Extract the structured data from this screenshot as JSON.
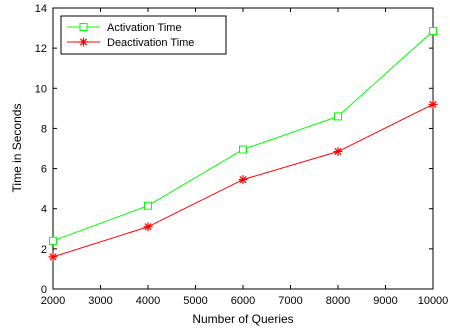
{
  "chart_data": {
    "type": "line",
    "title": "",
    "xlabel": "Number of Queries",
    "ylabel": "Time in Seconds",
    "xlim": [
      2000,
      10000
    ],
    "ylim": [
      0,
      14
    ],
    "xticks": [
      2000,
      3000,
      4000,
      5000,
      6000,
      7000,
      8000,
      9000,
      10000
    ],
    "yticks": [
      0,
      2,
      4,
      6,
      8,
      10,
      12,
      14
    ],
    "grid": false,
    "legend_position": "top-left",
    "series": [
      {
        "name": "Activation Time",
        "color": "#00ff00",
        "marker": "square",
        "x": [
          2000,
          4000,
          6000,
          8000,
          10000
        ],
        "y": [
          2.4,
          4.15,
          6.95,
          8.6,
          12.85
        ]
      },
      {
        "name": "Deactivation Time",
        "color": "#ff0000",
        "marker": "asterisk",
        "x": [
          2000,
          4000,
          6000,
          8000,
          10000
        ],
        "y": [
          1.6,
          3.1,
          5.45,
          6.85,
          9.2
        ]
      }
    ]
  }
}
